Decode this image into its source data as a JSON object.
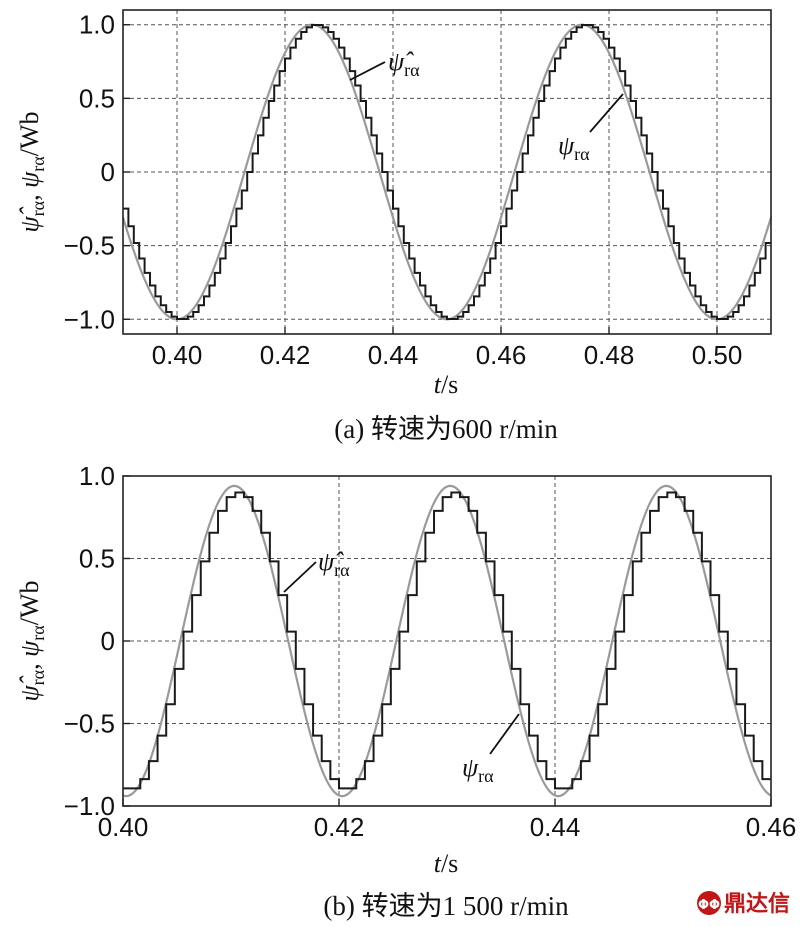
{
  "chart_data": [
    {
      "type": "line",
      "panel": "a",
      "caption": "(a) 转速为600 r/min",
      "xlabel": "t/s",
      "ylabel": "ψ̂rα, ψrα/Wb",
      "xlim": [
        0.39,
        0.51
      ],
      "ylim": [
        -1.1,
        1.1
      ],
      "xticks": [
        0.4,
        0.42,
        0.44,
        0.46,
        0.48,
        0.5
      ],
      "xtick_labels": [
        "0.40",
        "0.42",
        "0.44",
        "0.46",
        "0.48",
        "0.50"
      ],
      "yticks": [
        1.0,
        0.5,
        0,
        -0.5,
        -1.0
      ],
      "ytick_labels": [
        "1.0",
        "0.5",
        "0",
        "−0.5",
        "−1.0"
      ],
      "grid": true,
      "series": [
        {
          "name": "ψ̂rα",
          "style": "estimated-staircase",
          "color": "#1a1a1a",
          "amplitude": 1.0,
          "frequency_hz": 20,
          "peak_at": 0.425,
          "step_s": 0.001
        },
        {
          "name": "ψrα",
          "style": "actual",
          "color": "#9a9a9a",
          "amplitude": 1.0,
          "frequency_hz": 20,
          "peak_at": 0.425
        }
      ],
      "annotations": [
        {
          "symbol": "ψ̂",
          "subscript": "rα",
          "points_to": "ψ̂rα"
        },
        {
          "symbol": "ψ",
          "subscript": "rα",
          "points_to": "ψrα"
        }
      ]
    },
    {
      "type": "line",
      "panel": "b",
      "caption": "(b) 转速为1 500 r/min",
      "xlabel": "t/s",
      "ylabel": "ψ̂rα, ψrα/Wb",
      "xlim": [
        0.4,
        0.46
      ],
      "ylim": [
        -1.0,
        1.0
      ],
      "xticks": [
        0.4,
        0.42,
        0.44,
        0.46
      ],
      "xtick_labels": [
        "0.40",
        "0.42",
        "0.44",
        "0.46"
      ],
      "yticks": [
        1.0,
        0.5,
        0,
        -0.5,
        -1.0
      ],
      "ytick_labels": [
        "1.0",
        "0.5",
        "0",
        "−0.5",
        "−1.0"
      ],
      "grid": true,
      "series": [
        {
          "name": "ψ̂rα",
          "style": "estimated-staircase",
          "color": "#1a1a1a",
          "amplitude": 0.9,
          "frequency_hz": 50,
          "peak_at": 0.41,
          "step_s": 0.0008
        },
        {
          "name": "ψrα",
          "style": "actual",
          "color": "#9a9a9a",
          "amplitude": 0.94,
          "frequency_hz": 50,
          "peak_at": 0.4103
        }
      ],
      "annotations": [
        {
          "symbol": "ψ̂",
          "subscript": "rα",
          "points_to": "ψ̂rα"
        },
        {
          "symbol": "ψ",
          "subscript": "rα",
          "points_to": "ψrα"
        }
      ]
    }
  ],
  "watermark": {
    "text": "鼎达信",
    "color": "#c01818"
  }
}
